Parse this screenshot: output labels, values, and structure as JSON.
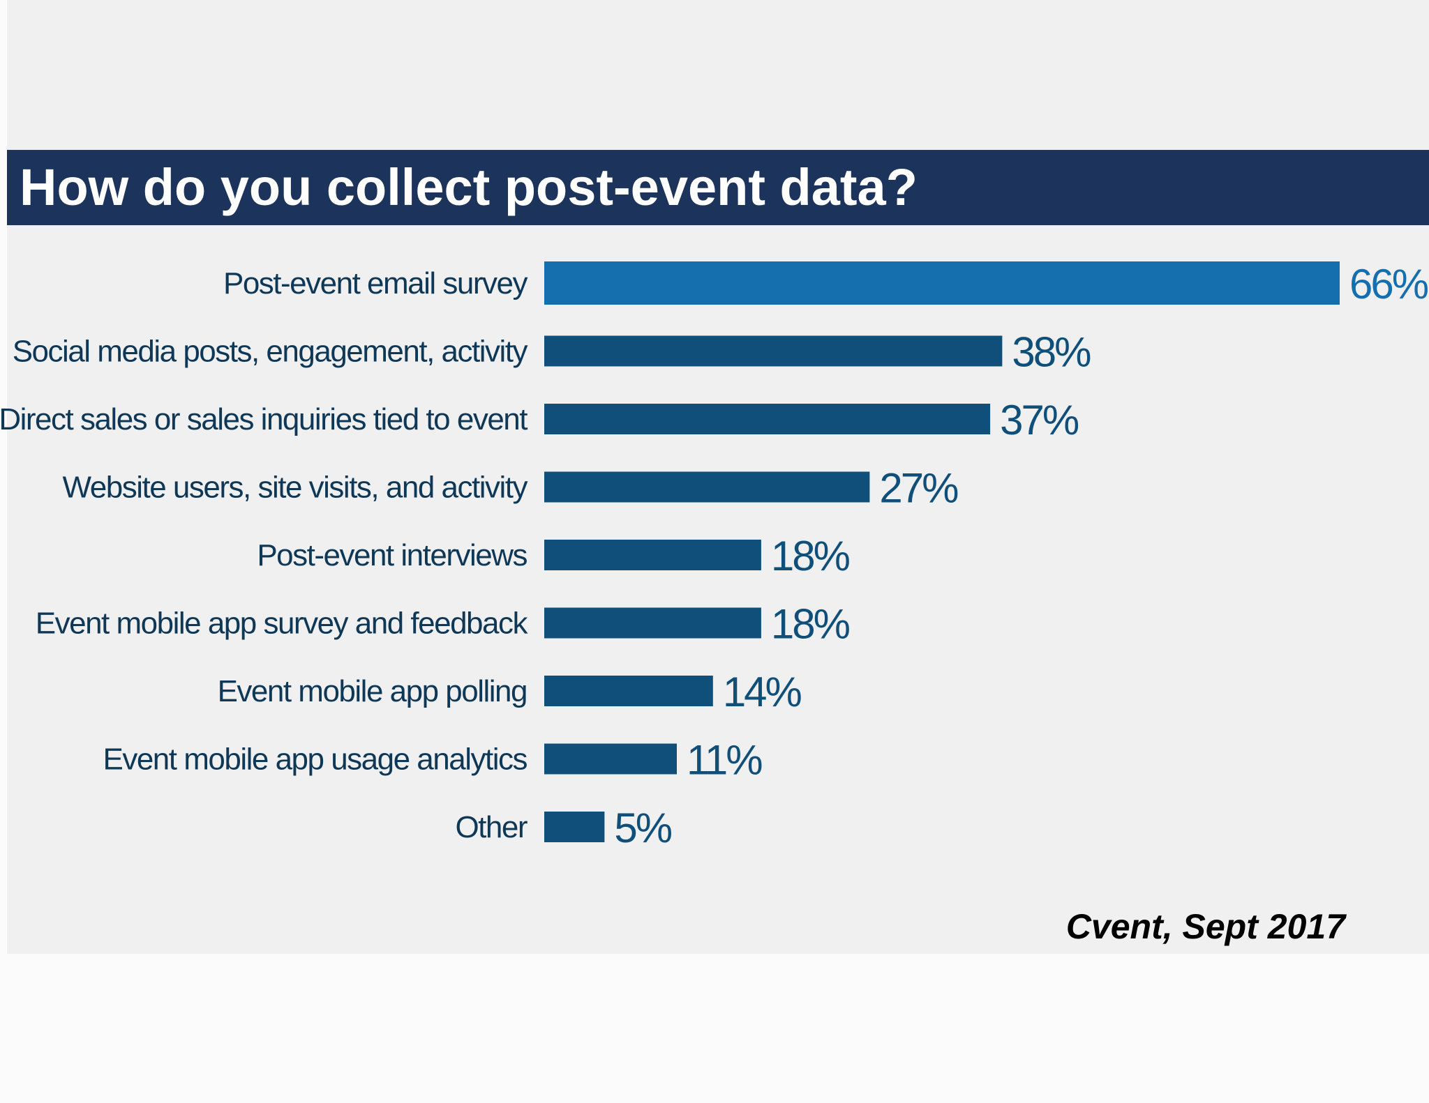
{
  "header": {
    "title": "How do you collect post-event data?"
  },
  "footer": {
    "source": "Cvent, Sept 2017"
  },
  "colors": {
    "accent_bar": "#156fae",
    "bar": "#0f4f7a",
    "title_band": "#1c345c"
  },
  "chart_data": {
    "type": "bar",
    "orientation": "horizontal",
    "title": "How do you collect post-event data?",
    "categories": [
      "Post-event email survey",
      "Social media posts, engagement, activity",
      "Direct sales or sales inquiries tied to event",
      "Website users, site visits, and activity",
      "Post-event interviews",
      "Event mobile app survey and feedback",
      "Event mobile app polling",
      "Event mobile app usage analytics",
      "Other"
    ],
    "values": [
      66,
      38,
      37,
      27,
      18,
      18,
      14,
      11,
      5
    ],
    "value_labels": [
      "66%",
      "38%",
      "37%",
      "27%",
      "18%",
      "18%",
      "14%",
      "11%",
      "5%"
    ],
    "highlight_index": 0,
    "xlim": [
      0,
      66
    ],
    "grid": false,
    "legend": false
  }
}
